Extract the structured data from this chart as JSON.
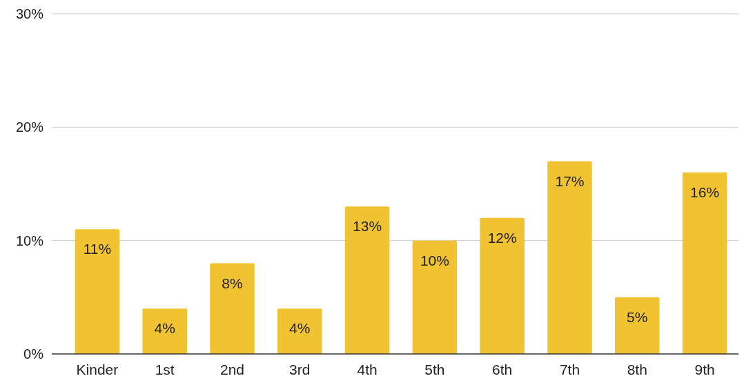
{
  "chart_data": {
    "type": "bar",
    "categories": [
      "Kinder",
      "1st",
      "2nd",
      "3rd",
      "4th",
      "5th",
      "6th",
      "7th",
      "8th",
      "9th"
    ],
    "values": [
      11,
      4,
      8,
      4,
      13,
      10,
      12,
      17,
      5,
      16
    ],
    "value_labels": [
      "11%",
      "4%",
      "8%",
      "4%",
      "13%",
      "10%",
      "12%",
      "17%",
      "5%",
      "16%"
    ],
    "color": "#f1c232",
    "ylim": [
      0,
      30
    ],
    "yticks": [
      {
        "value": 0,
        "label": "0%"
      },
      {
        "value": 10,
        "label": "10%"
      },
      {
        "value": 20,
        "label": "20%"
      },
      {
        "value": 30,
        "label": "30%"
      }
    ],
    "grid": "y"
  }
}
